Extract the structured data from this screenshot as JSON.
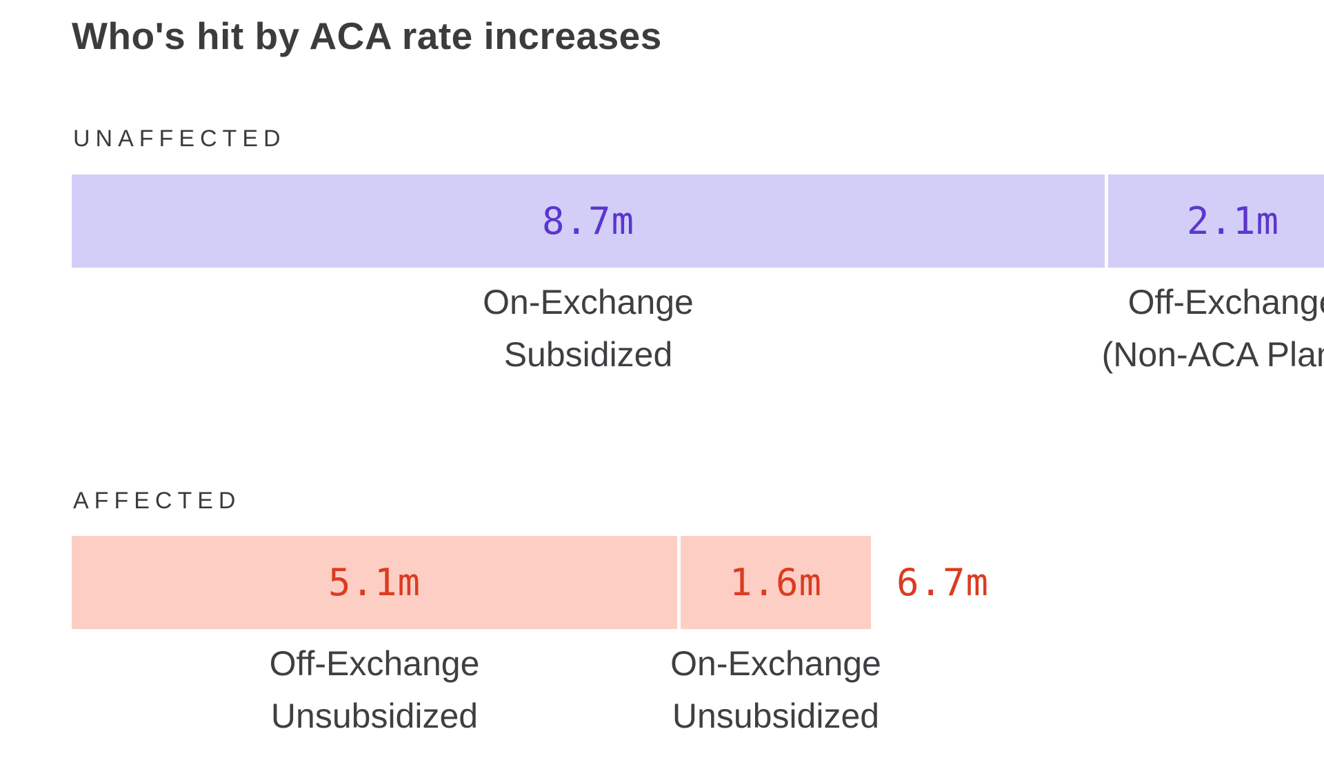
{
  "title": "Who's hit by ACA rate increases",
  "colors": {
    "background": "#ffffff",
    "heading_text": "#3b3c3e",
    "category_text": "#3e3f42",
    "unaffected_bar": "#d2cef7",
    "unaffected_value": "#5c35cd",
    "affected_bar": "#fccec4",
    "affected_value": "#dc3b20"
  },
  "chart_data": {
    "type": "bar",
    "title": "Who's hit by ACA rate increases",
    "orientation": "horizontal-proportional",
    "value_suffix": "m",
    "axis": "none (bar widths proportional to millions of people)",
    "groups": [
      {
        "label": "UNAFFECTED",
        "bar_color": "#d2cef7",
        "value_color": "#5c35cd",
        "segments": [
          {
            "value": 8.7,
            "value_label": "8.7m",
            "category": "On-Exchange Subsidized",
            "category_lines": [
              "On-Exchange",
              "Subsidized"
            ]
          },
          {
            "value": 2.1,
            "value_label": "2.1m",
            "category": "Off-Exchange (Non-ACA Plans)",
            "category_lines": [
              "Off-Exchange",
              "(Non-ACA Plans)"
            ]
          }
        ]
      },
      {
        "label": "AFFECTED",
        "bar_color": "#fccec4",
        "value_color": "#dc3b20",
        "segments": [
          {
            "value": 5.1,
            "value_label": "5.1m",
            "category": "Off-Exchange Unsubsidized",
            "category_lines": [
              "Off-Exchange",
              "Unsubsidized"
            ]
          },
          {
            "value": 1.6,
            "value_label": "1.6m",
            "category": "On-Exchange Unsubsidized",
            "category_lines": [
              "On-Exchange",
              "Unsubsidized"
            ]
          }
        ],
        "total_value": 6.7,
        "total_label": "6.7m"
      }
    ]
  }
}
